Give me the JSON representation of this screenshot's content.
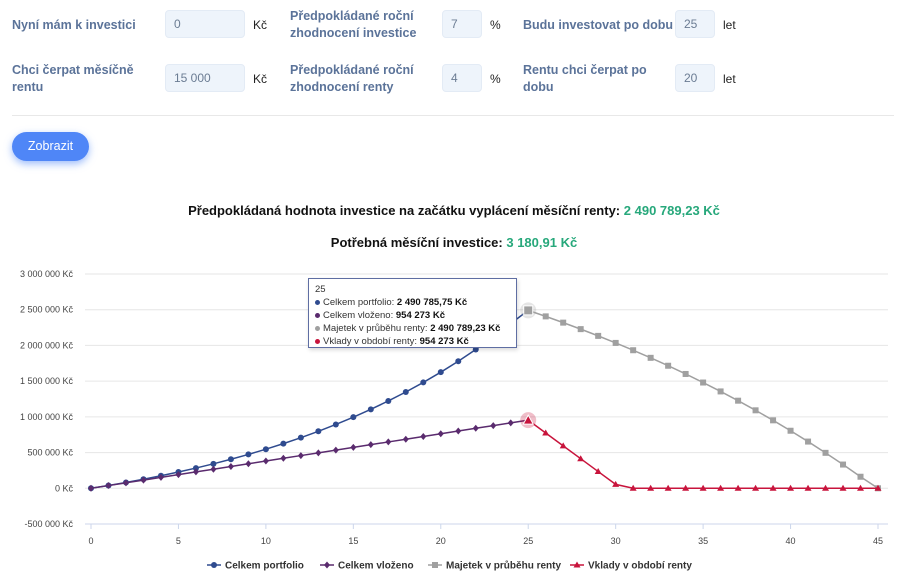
{
  "form": {
    "current_label": "Nyní mám k investici",
    "current_value": "0",
    "current_unit": "Kč",
    "growth_label": "Předpokládané roční zhodnocení investice",
    "growth_value": "7",
    "growth_unit": "%",
    "invest_years_label": "Budu investovat po dobu",
    "invest_years_value": "25",
    "invest_years_unit": "let",
    "rent_label": "Chci čerpat měsíčně rentu",
    "rent_value": "15 000",
    "rent_unit": "Kč",
    "rent_growth_label": "Předpokládané roční zhodnocení renty",
    "rent_growth_value": "4",
    "rent_growth_unit": "%",
    "rent_years_label": "Rentu chci čerpat po dobu",
    "rent_years_value": "20",
    "rent_years_unit": "let"
  },
  "button": {
    "label": "Zobrazit"
  },
  "results": {
    "value_label": "Předpokládaná hodnota investice na začátku vyplácení měsíční renty:",
    "value_amount": "2 490 789,23 Kč",
    "monthly_label": "Potřebná měsíční investice:",
    "monthly_amount": "3 180,91 Kč"
  },
  "tooltip": {
    "header": "25",
    "rows": [
      {
        "label": "Celkem portfolio:",
        "value": "2 490 785,75 Kč",
        "color": "#2f4b8f"
      },
      {
        "label": "Celkem vloženo:",
        "value": "954 273 Kč",
        "color": "#5a2b6e"
      },
      {
        "label": "Majetek v průběhu renty:",
        "value": "2 490 789,23 Kč",
        "color": "#a0a0a0"
      },
      {
        "label": "Vklady v období renty:",
        "value": "954 273 Kč",
        "color": "#c8143c"
      }
    ]
  },
  "chart_data": {
    "type": "line",
    "xlim": [
      0,
      45
    ],
    "ylim": [
      -500000,
      3000000
    ],
    "x_ticks": [
      "0",
      "5",
      "10",
      "15",
      "20",
      "25",
      "30",
      "35",
      "40",
      "45"
    ],
    "y_ticks": [
      "3 000 000 Kč",
      "2 500 000 Kč",
      "2 000 000 Kč",
      "1 500 000 Kč",
      "1 000 000 Kč",
      "500 000 Kč",
      "0 Kč",
      "-500 000 Kč"
    ],
    "y_tick_values": [
      3000000,
      2500000,
      2000000,
      1500000,
      1000000,
      500000,
      0,
      -500000
    ],
    "grid": true,
    "legend_position": "bottom",
    "series": [
      {
        "name": "Celkem portfolio",
        "color": "#2f4b8f",
        "marker": "circle",
        "x": [
          0,
          1,
          2,
          3,
          4,
          5,
          6,
          7,
          8,
          9,
          10,
          11,
          12,
          13,
          14,
          15,
          16,
          17,
          18,
          19,
          20,
          21,
          22,
          23,
          24,
          25
        ],
        "values": [
          0,
          39500,
          81800,
          127100,
          175600,
          227500,
          283000,
          342500,
          406100,
          474200,
          547100,
          625100,
          708600,
          797900,
          893500,
          995800,
          1105200,
          1222400,
          1347800,
          1481900,
          1625500,
          1779000,
          1943400,
          2119300,
          2307400,
          2490786
        ]
      },
      {
        "name": "Celkem vloženo",
        "color": "#5a2b6e",
        "marker": "diamond",
        "x": [
          0,
          1,
          2,
          3,
          4,
          5,
          6,
          7,
          8,
          9,
          10,
          11,
          12,
          13,
          14,
          15,
          16,
          17,
          18,
          19,
          20,
          21,
          22,
          23,
          24,
          25
        ],
        "values": [
          0,
          38171,
          76342,
          114513,
          152684,
          190855,
          229026,
          267197,
          305368,
          343539,
          381710,
          419881,
          458052,
          496223,
          534394,
          572565,
          610736,
          648907,
          687078,
          725249,
          763420,
          801591,
          839762,
          877933,
          916104,
          954273
        ]
      },
      {
        "name": "Majetek v průběhu renty",
        "color": "#a0a0a0",
        "marker": "square",
        "x": [
          25,
          26,
          27,
          28,
          29,
          30,
          31,
          32,
          33,
          34,
          35,
          36,
          37,
          38,
          39,
          40,
          41,
          42,
          43,
          44,
          45
        ],
        "values": [
          2490789,
          2406700,
          2319200,
          2228200,
          2133600,
          2035200,
          1932800,
          1826400,
          1715600,
          1600400,
          1480600,
          1356000,
          1226400,
          1091600,
          951400,
          805600,
          654000,
          496300,
          332300,
          161700,
          0
        ]
      },
      {
        "name": "Vklady v období renty",
        "color": "#c8143c",
        "marker": "triangle",
        "x": [
          25,
          26,
          27,
          28,
          29,
          30,
          31,
          32,
          33,
          34,
          35,
          36,
          37,
          38,
          39,
          40,
          41,
          42,
          43,
          44,
          45
        ],
        "values": [
          954273,
          774273,
          594273,
          414273,
          234273,
          54273,
          0,
          0,
          0,
          0,
          0,
          0,
          0,
          0,
          0,
          0,
          0,
          0,
          0,
          0,
          0
        ]
      }
    ]
  }
}
